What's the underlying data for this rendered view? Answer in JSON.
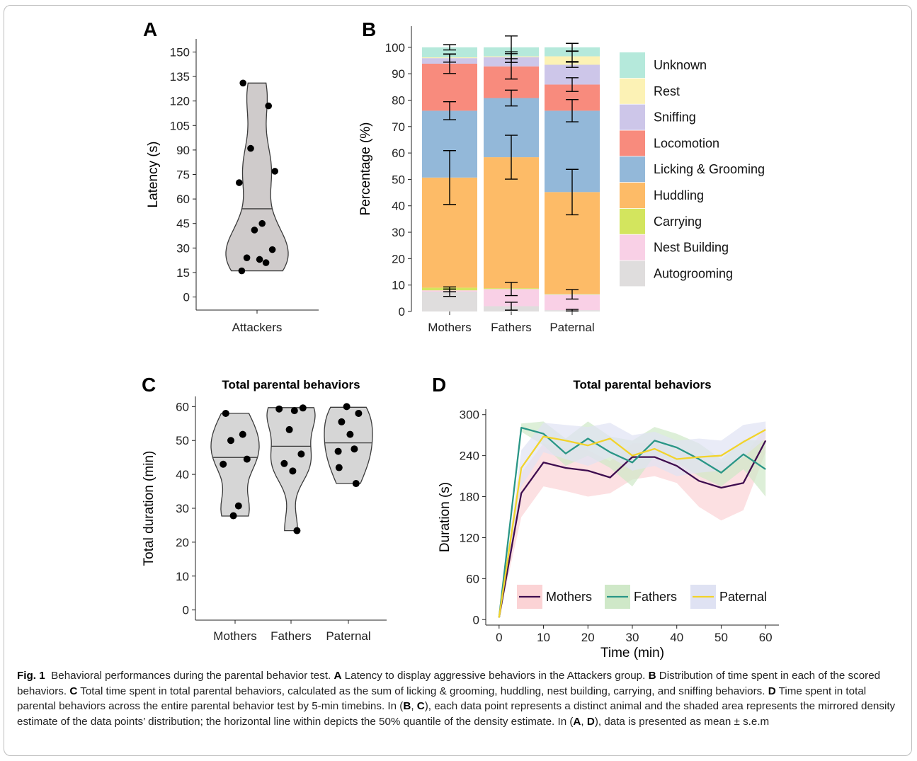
{
  "panels": [
    {
      "id": "A",
      "chart_data": {
        "type": "violin",
        "categories": [
          "Attackers"
        ],
        "ylabel": "Latency (s)",
        "xlabel": "",
        "ylim": [
          -8,
          158
        ],
        "yticks": [
          0,
          15,
          30,
          45,
          60,
          75,
          90,
          105,
          120,
          135,
          150
        ],
        "median": 54,
        "range": [
          16,
          131
        ],
        "points": [
          131,
          117,
          91,
          77,
          70,
          45,
          41,
          29,
          24,
          23,
          21,
          16
        ]
      }
    },
    {
      "id": "B",
      "chart_data": {
        "type": "bar",
        "stacked": true,
        "ylabel": "Percentage (%)",
        "xlabel": "",
        "ylim": [
          0,
          108
        ],
        "yticks": [
          0,
          10,
          20,
          30,
          40,
          50,
          60,
          70,
          80,
          90,
          100
        ],
        "categories": [
          "Mothers",
          "Fathers",
          "Paternal"
        ],
        "series": [
          {
            "name": "Autogrooming",
            "color": "#dfdddd",
            "values": [
              7.5,
              2.0,
              0.5
            ],
            "errors": [
              1.8,
              1.5,
              0.3
            ]
          },
          {
            "name": "Nest Building",
            "color": "#f9d0e6",
            "values": [
              0.5,
              6.5,
              6.0
            ],
            "errors": [
              0.5,
              2.5,
              1.8
            ]
          },
          {
            "name": "Carrying",
            "color": "#d3e55e",
            "values": [
              1.0,
              0.3,
              0.2
            ],
            "errors": [
              0,
              0,
              0
            ]
          },
          {
            "name": "Huddling",
            "color": "#fdbb67",
            "values": [
              41.7,
              49.6,
              38.5
            ],
            "errors": [
              10.2,
              8.3,
              8.6
            ]
          },
          {
            "name": "Licking & Grooming",
            "color": "#93b8d9",
            "values": [
              25.3,
              22.4,
              30.8
            ],
            "errors": [
              3.4,
              3.0,
              4.2
            ]
          },
          {
            "name": "Locomotion",
            "color": "#f88b7d",
            "values": [
              17.8,
              12.0,
              9.9
            ],
            "errors": [
              3.7,
              4.8,
              2.6
            ]
          },
          {
            "name": "Sniffing",
            "color": "#cdc6e9",
            "values": [
              2.1,
              3.5,
              7.5
            ],
            "errors": [
              1.5,
              2.0,
              1.0
            ]
          },
          {
            "name": "Rest",
            "color": "#fcf2b5",
            "values": [
              0.3,
              0.3,
              3.2
            ],
            "errors": [
              0,
              0,
              2.0
            ]
          },
          {
            "name": "Unknown",
            "color": "#b5e9db",
            "values": [
              3.8,
              3.4,
              3.4
            ],
            "errors": [
              1.0,
              4.3,
              1.5
            ]
          }
        ],
        "legend_order": [
          "Unknown",
          "Rest",
          "Sniffing",
          "Locomotion",
          "Licking & Grooming",
          "Huddling",
          "Carrying",
          "Nest Building",
          "Autogrooming"
        ],
        "legend_position": "right"
      }
    },
    {
      "id": "C",
      "chart_data": {
        "type": "violin",
        "title": "Total parental behaviors",
        "ylabel": "Total duration (min)",
        "xlabel": "",
        "ylim": [
          -3,
          63
        ],
        "yticks": [
          0,
          10,
          20,
          30,
          40,
          50,
          60
        ],
        "categories": [
          "Mothers",
          "Fathers",
          "Paternal"
        ],
        "violins": [
          {
            "name": "Mothers",
            "range": [
              27.7,
              58
            ],
            "median": 45,
            "points": [
              58,
              51.8,
              50,
              44.5,
              43,
              30.7,
              27.8
            ]
          },
          {
            "name": "Fathers",
            "range": [
              23.4,
              59.7
            ],
            "median": 48.3,
            "points": [
              59.6,
              59.3,
              58.8,
              53.2,
              46,
              43.2,
              41,
              23.4
            ]
          },
          {
            "name": "Paternal",
            "range": [
              37.3,
              59.8
            ],
            "median": 49.3,
            "points": [
              60,
              58,
              55.5,
              51.8,
              47.5,
              46.8,
              42,
              37.3
            ]
          }
        ]
      }
    },
    {
      "id": "D",
      "chart_data": {
        "type": "line",
        "title": "Total parental behaviors",
        "xlabel": "Time (min)",
        "ylabel": "Duration (s)",
        "xlim": [
          -3,
          63
        ],
        "ylim": [
          -8,
          308
        ],
        "xticks": [
          0,
          10,
          20,
          30,
          40,
          50,
          60
        ],
        "yticks": [
          0,
          60,
          120,
          180,
          240,
          300
        ],
        "x": [
          0,
          5,
          10,
          15,
          20,
          25,
          30,
          35,
          40,
          45,
          50,
          55,
          60
        ],
        "series": [
          {
            "name": "Mothers",
            "color": "#3f0d4f",
            "band": "#fbd3d5",
            "values": [
              3,
              185,
              230,
              222,
              218,
              208,
              238,
              238,
              225,
              203,
              193,
              200,
              262
            ],
            "lower": [
              3,
              150,
              195,
              188,
              180,
              185,
              205,
              210,
              200,
              165,
              145,
              160,
              245
            ],
            "upper": [
              3,
              215,
              258,
              250,
              248,
              232,
              258,
              258,
              248,
              235,
              230,
              238,
              282
            ]
          },
          {
            "name": "Fathers",
            "color": "#2a9686",
            "band": "#cfe8c8",
            "values": [
              3,
              281,
              272,
              243,
              265,
              245,
              230,
              262,
              252,
              235,
              215,
              242,
              220
            ],
            "lower": [
              3,
              275,
              255,
              225,
              240,
              222,
              195,
              240,
              230,
              210,
              195,
              220,
              180
            ],
            "upper": [
              3,
              287,
              290,
              265,
              290,
              268,
              262,
              282,
              272,
              258,
              235,
              263,
              262
            ]
          },
          {
            "name": "Paternal",
            "color": "#f2d32a",
            "band": "#dfe2f3",
            "values": [
              3,
              222,
              268,
              262,
              255,
              265,
              240,
              250,
              235,
              238,
              240,
              260,
              278
            ],
            "lower": [
              3,
              195,
              245,
              235,
              225,
              238,
              218,
              225,
              210,
              215,
              218,
              238,
              265
            ],
            "upper": [
              3,
              248,
              288,
              285,
              282,
              288,
              270,
              275,
              262,
              265,
              262,
              285,
              290
            ]
          }
        ],
        "legend_position": "bottom-inside"
      }
    }
  ],
  "caption": {
    "label": "Fig. 1",
    "title": "Behavioral performances during the parental behavior test.",
    "A_ref": "A",
    "A_text": "Latency to display aggressive behaviors in the Attackers group.",
    "B_ref": "B",
    "B_text": "Distribution of time spent in each of the scored behaviors.",
    "C_ref": "C",
    "C_text": "Total time spent in total parental behaviors, calculated as the sum of licking & grooming, huddling, nest building, carrying, and sniffing behaviors.",
    "D_ref": "D",
    "D_text": "Time spent in total parental behaviors across the entire parental behavior test by 5-min timebins. In (",
    "BC_1": "B",
    "sep_1": ", ",
    "BC_2": "C",
    "BC_text": "), each data point represents a distinct animal and the shaded area represents the mirrored density estimate of the data points’ distribution; the horizontal line within depicts the 50% quantile of the density estimate. In (",
    "AD_1": "A",
    "sep_2": ", ",
    "AD_2": "D",
    "AD_text": "), data is presented as mean ± s.e.m"
  }
}
